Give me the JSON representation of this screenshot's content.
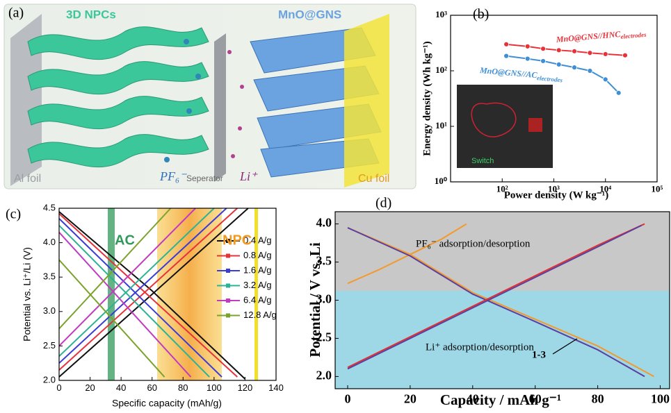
{
  "illustration": {
    "panel_label": "(a)",
    "labels": [
      "3D NPCs",
      "MnO@GNS",
      "Al foil",
      "PF₆⁻",
      "Seperator",
      "Li⁺",
      "Cu foil"
    ]
  },
  "chart_data": [
    {
      "type": "line",
      "panel_label": "(b)",
      "xlabel": "Power density (W kg⁻¹)",
      "ylabel": "Energy density (Wh kg⁻¹)",
      "xscale": "log",
      "yscale": "log",
      "xlim": [
        10,
        100000
      ],
      "ylim": [
        1,
        1000
      ],
      "xticks": [
        {
          "value": 100,
          "label": "10²"
        },
        {
          "value": 1000,
          "label": "10³"
        },
        {
          "value": 10000,
          "label": "10⁴"
        },
        {
          "value": 100000,
          "label": "10⁵"
        }
      ],
      "yticks": [
        {
          "value": 1,
          "label": "10⁰"
        },
        {
          "value": 10,
          "label": "10¹"
        },
        {
          "value": 100,
          "label": "10²"
        },
        {
          "value": 1000,
          "label": "10³"
        }
      ],
      "inset_label": "Switch",
      "series": [
        {
          "name": "MnO@GNS//HNC",
          "name_sub": "electrodes",
          "color": "#e8323a",
          "marker": "circle",
          "x": [
            120,
            310,
            620,
            1250,
            2500,
            5000,
            10000,
            24000
          ],
          "values": [
            300,
            275,
            250,
            235,
            225,
            210,
            200,
            190
          ]
        },
        {
          "name": "MnO@GNS//AC",
          "name_sub": "electrodes",
          "color": "#3f8fd6",
          "marker": "circle",
          "x": [
            120,
            310,
            620,
            1250,
            2500,
            5000,
            10000,
            18000
          ],
          "values": [
            185,
            165,
            150,
            130,
            115,
            100,
            70,
            40
          ]
        }
      ]
    },
    {
      "type": "line",
      "panel_label": "(c)",
      "xlabel": "Specific capacity (mAh/g)",
      "ylabel": "Potential vs. Li⁺/Li (V)",
      "legend": "right",
      "xlim": [
        0,
        140
      ],
      "ylim": [
        2.0,
        4.5
      ],
      "xticks": [
        0,
        20,
        40,
        60,
        80,
        100,
        120,
        140
      ],
      "yticks": [
        {
          "value": 2,
          "label": "2.0"
        },
        2.5,
        {
          "value": 3,
          "label": "3.0"
        },
        3.5,
        {
          "value": 4,
          "label": "4.0"
        },
        4.5
      ],
      "annotations": [
        "AC",
        "NPC"
      ],
      "series": [
        {
          "name": "0.4 A/g",
          "color": "#111111",
          "x": [
            0,
            60,
            122,
            null,
            0,
            60,
            120
          ],
          "values": [
            2.05,
            3.25,
            4.5,
            null,
            4.45,
            3.3,
            2.02
          ]
        },
        {
          "name": "0.8 A/g",
          "color": "#e8323a",
          "x": [
            0,
            115,
            null,
            0,
            115
          ],
          "values": [
            2.15,
            4.5,
            null,
            4.42,
            2.05
          ]
        },
        {
          "name": "1.6 A/g",
          "color": "#3b3bd6",
          "x": [
            0,
            108,
            null,
            0,
            105
          ],
          "values": [
            2.25,
            4.5,
            null,
            4.35,
            2.05
          ]
        },
        {
          "name": "3.2 A/g",
          "color": "#2bb394",
          "x": [
            0,
            100,
            null,
            0,
            97
          ],
          "values": [
            2.35,
            4.5,
            null,
            4.25,
            2.05
          ]
        },
        {
          "name": "6.4 A/g",
          "color": "#c13bc1",
          "x": [
            0,
            88,
            null,
            0,
            85
          ],
          "values": [
            2.5,
            4.5,
            null,
            4.15,
            2.05
          ]
        },
        {
          "name": "12.8 A/g",
          "color": "#7aa32c",
          "x": [
            0,
            72,
            null,
            0,
            68
          ],
          "values": [
            2.75,
            4.5,
            null,
            3.75,
            2.05
          ]
        }
      ]
    },
    {
      "type": "line",
      "panel_label": "(d)",
      "xlabel": "Capacity / mAh g⁻¹",
      "ylabel": "Potential / V vs. Li",
      "xlim": [
        -4,
        103
      ],
      "ylim": [
        1.84,
        4.16
      ],
      "xticks": [
        0,
        20,
        40,
        60,
        80,
        100
      ],
      "yticks": [
        {
          "value": 2,
          "label": "2.0"
        },
        2.5,
        {
          "value": 3,
          "label": "3.0"
        },
        3.5,
        {
          "value": 4,
          "label": "4.0"
        }
      ],
      "annotations": [
        "PF₆⁻ adsorption/desorption",
        "Li⁺ adsorption/desorption",
        "1-3"
      ],
      "series": [
        {
          "color": "#f39a2e",
          "x": [
            0,
            10,
            20,
            30,
            38
          ],
          "values": [
            3.22,
            3.4,
            3.6,
            3.8,
            4.0
          ]
        },
        {
          "color": "#f39a2e",
          "x": [
            0,
            20,
            40,
            60,
            80,
            98
          ],
          "values": [
            3.95,
            3.6,
            3.1,
            2.75,
            2.4,
            2.0
          ]
        },
        {
          "color": "#5b3fa0",
          "x": [
            0,
            20,
            40,
            60,
            80,
            95
          ],
          "values": [
            3.95,
            3.58,
            3.08,
            2.72,
            2.35,
            2.0
          ]
        },
        {
          "color": "#e03030",
          "x": [
            0,
            20,
            40,
            60,
            80,
            95
          ],
          "values": [
            2.12,
            2.52,
            2.92,
            3.32,
            3.72,
            4.0
          ]
        },
        {
          "color": "#5b3fa0",
          "x": [
            0,
            20,
            40,
            60,
            80,
            94
          ],
          "values": [
            2.1,
            2.5,
            2.9,
            3.3,
            3.7,
            3.98
          ]
        }
      ]
    }
  ]
}
